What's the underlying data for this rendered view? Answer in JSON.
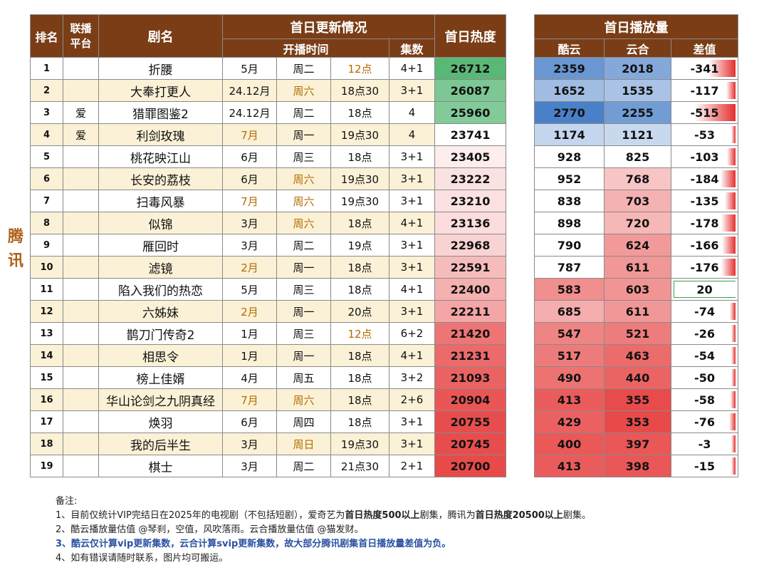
{
  "side_label": "腾讯",
  "headers": {
    "rank": "排名",
    "platform_line1": "联播",
    "platform_line2": "平台",
    "title": "剧名",
    "update_group": "首日更新情况",
    "start_time": "开播时间",
    "episodes": "集数",
    "heat": "首日热度",
    "play_group": "首日播放量",
    "kuyun": "酷云",
    "yunhe": "云合",
    "diff": "差值"
  },
  "colors": {
    "header_bg": "#7a3d16",
    "stripe_bg": "#fbf1d6",
    "highlight_text": "#b36b00",
    "heat_high": "#5ab877",
    "heat_low": "#e84a4a",
    "play_high": "#4a80c8",
    "play_low": "#e84a4a",
    "diff_bar": "#e52e2e"
  },
  "rows": [
    {
      "rank": "1",
      "platform": "",
      "title": "折腰",
      "month": "5月",
      "weekday": "周二",
      "time": "12点",
      "episodes": "4+1",
      "heat": "26712",
      "kuyun": "2359",
      "yunhe": "2018",
      "diff": "-341",
      "hl": {
        "month": false,
        "weekday": false,
        "time": true
      }
    },
    {
      "rank": "2",
      "platform": "",
      "title": "大奉打更人",
      "month": "24.12月",
      "weekday": "周六",
      "time": "18点30",
      "episodes": "3+1",
      "heat": "26087",
      "kuyun": "1652",
      "yunhe": "1535",
      "diff": "-117",
      "hl": {
        "month": false,
        "weekday": true,
        "time": false
      }
    },
    {
      "rank": "3",
      "platform": "爱",
      "title": "猎罪图鉴2",
      "month": "24.12月",
      "weekday": "周二",
      "time": "18点",
      "episodes": "4",
      "heat": "25960",
      "kuyun": "2770",
      "yunhe": "2255",
      "diff": "-515",
      "hl": {
        "month": false,
        "weekday": false,
        "time": false
      }
    },
    {
      "rank": "4",
      "platform": "爱",
      "title": "利剑玫瑰",
      "month": "7月",
      "weekday": "周一",
      "time": "19点30",
      "episodes": "4",
      "heat": "23741",
      "kuyun": "1174",
      "yunhe": "1121",
      "diff": "-53",
      "hl": {
        "month": true,
        "weekday": false,
        "time": false
      }
    },
    {
      "rank": "5",
      "platform": "",
      "title": "桃花映江山",
      "month": "6月",
      "weekday": "周三",
      "time": "18点",
      "episodes": "3+1",
      "heat": "23405",
      "kuyun": "928",
      "yunhe": "825",
      "diff": "-103",
      "hl": {
        "month": false,
        "weekday": false,
        "time": false
      }
    },
    {
      "rank": "6",
      "platform": "",
      "title": "长安的荔枝",
      "month": "6月",
      "weekday": "周六",
      "time": "19点30",
      "episodes": "3+1",
      "heat": "23222",
      "kuyun": "952",
      "yunhe": "768",
      "diff": "-184",
      "hl": {
        "month": false,
        "weekday": true,
        "time": false
      }
    },
    {
      "rank": "7",
      "platform": "",
      "title": "扫毒风暴",
      "month": "7月",
      "weekday": "周六",
      "time": "19点30",
      "episodes": "3+1",
      "heat": "23210",
      "kuyun": "838",
      "yunhe": "703",
      "diff": "-135",
      "hl": {
        "month": true,
        "weekday": true,
        "time": false
      }
    },
    {
      "rank": "8",
      "platform": "",
      "title": "似锦",
      "month": "3月",
      "weekday": "周六",
      "time": "18点",
      "episodes": "4+1",
      "heat": "23136",
      "kuyun": "898",
      "yunhe": "720",
      "diff": "-178",
      "hl": {
        "month": false,
        "weekday": true,
        "time": false
      }
    },
    {
      "rank": "9",
      "platform": "",
      "title": "雁回时",
      "month": "3月",
      "weekday": "周二",
      "time": "19点",
      "episodes": "3+1",
      "heat": "22968",
      "kuyun": "790",
      "yunhe": "624",
      "diff": "-166",
      "hl": {
        "month": false,
        "weekday": false,
        "time": false
      }
    },
    {
      "rank": "10",
      "platform": "",
      "title": "滤镜",
      "month": "2月",
      "weekday": "周一",
      "time": "18点",
      "episodes": "3+1",
      "heat": "22591",
      "kuyun": "787",
      "yunhe": "611",
      "diff": "-176",
      "hl": {
        "month": true,
        "weekday": false,
        "time": false
      }
    },
    {
      "rank": "11",
      "platform": "",
      "title": "陷入我们的热恋",
      "month": "5月",
      "weekday": "周三",
      "time": "18点",
      "episodes": "4+1",
      "heat": "22400",
      "kuyun": "583",
      "yunhe": "603",
      "diff": "20",
      "hl": {
        "month": false,
        "weekday": false,
        "time": false
      }
    },
    {
      "rank": "12",
      "platform": "",
      "title": "六姊妹",
      "month": "2月",
      "weekday": "周一",
      "time": "20点",
      "episodes": "3+1",
      "heat": "22211",
      "kuyun": "685",
      "yunhe": "611",
      "diff": "-74",
      "hl": {
        "month": true,
        "weekday": false,
        "time": false
      }
    },
    {
      "rank": "13",
      "platform": "",
      "title": "鹊刀门传奇2",
      "month": "1月",
      "weekday": "周三",
      "time": "12点",
      "episodes": "6+2",
      "heat": "21420",
      "kuyun": "547",
      "yunhe": "521",
      "diff": "-26",
      "hl": {
        "month": false,
        "weekday": false,
        "time": true
      }
    },
    {
      "rank": "14",
      "platform": "",
      "title": "相思令",
      "month": "1月",
      "weekday": "周一",
      "time": "18点",
      "episodes": "4+1",
      "heat": "21231",
      "kuyun": "517",
      "yunhe": "463",
      "diff": "-54",
      "hl": {
        "month": false,
        "weekday": false,
        "time": false
      }
    },
    {
      "rank": "15",
      "platform": "",
      "title": "榜上佳婿",
      "month": "4月",
      "weekday": "周五",
      "time": "18点",
      "episodes": "3+2",
      "heat": "21093",
      "kuyun": "490",
      "yunhe": "440",
      "diff": "-50",
      "hl": {
        "month": false,
        "weekday": false,
        "time": false
      }
    },
    {
      "rank": "16",
      "platform": "",
      "title": "华山论剑之九阴真经",
      "month": "7月",
      "weekday": "周六",
      "time": "18点",
      "episodes": "2+6",
      "heat": "20904",
      "kuyun": "413",
      "yunhe": "355",
      "diff": "-58",
      "hl": {
        "month": true,
        "weekday": true,
        "time": false
      }
    },
    {
      "rank": "17",
      "platform": "",
      "title": "焕羽",
      "month": "6月",
      "weekday": "周四",
      "time": "18点",
      "episodes": "3+1",
      "heat": "20755",
      "kuyun": "429",
      "yunhe": "353",
      "diff": "-76",
      "hl": {
        "month": false,
        "weekday": false,
        "time": false
      }
    },
    {
      "rank": "18",
      "platform": "",
      "title": "我的后半生",
      "month": "3月",
      "weekday": "周日",
      "time": "19点30",
      "episodes": "3+1",
      "heat": "20745",
      "kuyun": "400",
      "yunhe": "397",
      "diff": "-3",
      "hl": {
        "month": false,
        "weekday": true,
        "time": false
      }
    },
    {
      "rank": "19",
      "platform": "",
      "title": "棋士",
      "month": "3月",
      "weekday": "周二",
      "time": "21点30",
      "episodes": "2+1",
      "heat": "20700",
      "kuyun": "413",
      "yunhe": "398",
      "diff": "-15",
      "hl": {
        "month": false,
        "weekday": false,
        "time": false
      }
    }
  ],
  "notes": {
    "title": "备注:",
    "n1_a": "1、目前仅统计VIP完结日在2025年的电视剧（不包括短剧），爱奇艺为",
    "n1_b": "首日热度500以上",
    "n1_c": "剧集，腾讯为",
    "n1_d": "首日热度20500以上",
    "n1_e": "剧集。",
    "n2": "2、酷云播放量估值 @琴刹，空值，风吹落雨。云合播放量估值 @猫发财。",
    "n3": "3、酷云仅计算vip更新集数，云合计算svip更新集数，故大部分腾讯剧集首日播放量差值为负。",
    "n4": "4、如有错误请随时联系，图片均可搬运。"
  }
}
